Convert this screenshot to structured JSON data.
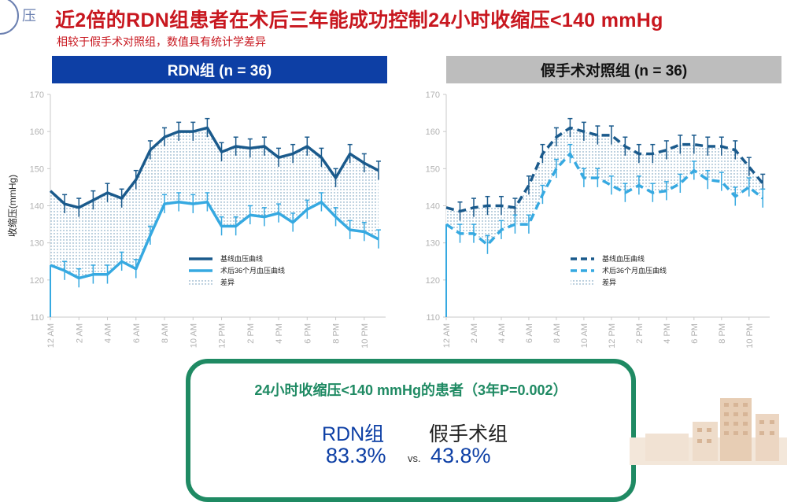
{
  "logo": {
    "text": "压"
  },
  "title": "近2倍的RDN组患者在术后三年能成功控制24小时收缩压<140 mmHg",
  "subtitle": "相较于假手术对照组，数值具有统计学差异",
  "colors": {
    "title_red": "#c8171f",
    "rdn_blue": "#0d3fa5",
    "baseline_dark": "#1a5a8c",
    "post_light": "#36a9e1",
    "box_green": "#1f8a63",
    "sham_grey": "#bdbdbd"
  },
  "panels": [
    {
      "header": "RDN组 (n = 36)",
      "legend": [
        "基线血压曲线",
        "术后36个月血压曲线",
        "差异"
      ]
    },
    {
      "header": "假手术对照组 (n = 36)",
      "legend": [
        "基线血压曲线",
        "术后36个月血压曲线",
        "差异"
      ]
    }
  ],
  "summary": {
    "title": "24小时收缩压<140 mmHg的患者（3年P=0.002）",
    "group1": "RDN组",
    "group2": "假手术组",
    "pct1": "83.3%",
    "vs": "vs.",
    "pct2": "43.8%"
  },
  "chart_data": [
    {
      "type": "line",
      "title": "RDN组 (n = 36)",
      "ylabel": "收缩压(mmHg)",
      "ylim": [
        110,
        170
      ],
      "yticks": [
        110,
        120,
        130,
        140,
        150,
        160,
        170
      ],
      "xlim": [
        0,
        23.5
      ],
      "xticks": [
        "12 AM",
        "2 AM",
        "4 AM",
        "6 AM",
        "8 AM",
        "10 AM",
        "12 PM",
        "2 PM",
        "4 PM",
        "6 PM",
        "8 PM",
        "10 PM"
      ],
      "x": [
        0,
        1,
        2,
        3,
        4,
        5,
        6,
        7,
        8,
        9,
        10,
        11,
        12,
        13,
        14,
        15,
        16,
        17,
        18,
        19,
        20,
        21,
        22,
        23
      ],
      "series": [
        {
          "name": "基线血压曲线",
          "style": "solid",
          "values": [
            144,
            140.5,
            139.5,
            141.5,
            143.5,
            142,
            147,
            155,
            158.5,
            160,
            160,
            161,
            154.5,
            156,
            155.5,
            156,
            153,
            154,
            156,
            153,
            147.5,
            154,
            151.5,
            149.5
          ]
        },
        {
          "name": "术后36个月血压曲线",
          "style": "solid",
          "values": [
            124,
            122.5,
            120.5,
            121.5,
            121.5,
            125,
            123,
            132,
            140.5,
            141,
            140.5,
            141,
            134.5,
            134.5,
            137.5,
            137,
            138,
            135.5,
            139,
            141,
            137,
            133.5,
            133,
            131
          ]
        }
      ],
      "legend": [
        "基线血压曲线",
        "术后36个月血压曲线",
        "差异"
      ]
    },
    {
      "type": "line",
      "title": "假手术对照组 (n = 36)",
      "ylabel": "",
      "ylim": [
        110,
        170
      ],
      "yticks": [
        110,
        120,
        130,
        140,
        150,
        160,
        170
      ],
      "xlim": [
        0,
        23.5
      ],
      "xticks": [
        "12 AM",
        "2 AM",
        "4 AM",
        "6 AM",
        "8 AM",
        "10 AM",
        "12 PM",
        "2 PM",
        "4 PM",
        "6 PM",
        "8 PM",
        "10 PM"
      ],
      "x": [
        0,
        1,
        2,
        3,
        4,
        5,
        6,
        7,
        8,
        9,
        10,
        11,
        12,
        13,
        14,
        15,
        16,
        17,
        18,
        19,
        20,
        21,
        22,
        23
      ],
      "series": [
        {
          "name": "基线血压曲线",
          "style": "dashed",
          "values": [
            139.5,
            138.5,
            139.5,
            140,
            140,
            139.5,
            145.5,
            154,
            158.5,
            161,
            160,
            159,
            159,
            156,
            154,
            154,
            155,
            156.5,
            156.5,
            156,
            156,
            155,
            150.5,
            146
          ]
        },
        {
          "name": "术后36个月血压曲线",
          "style": "dashed",
          "values": [
            135,
            132.5,
            132.5,
            129.5,
            133.5,
            135,
            135,
            143,
            150,
            154,
            147.5,
            147.5,
            145.5,
            143.5,
            145.5,
            143.5,
            144,
            146,
            149.5,
            147,
            146.5,
            142.5,
            145,
            142
          ]
        }
      ],
      "legend": [
        "基线血压曲线",
        "术后36个月血压曲线",
        "差异"
      ]
    }
  ]
}
